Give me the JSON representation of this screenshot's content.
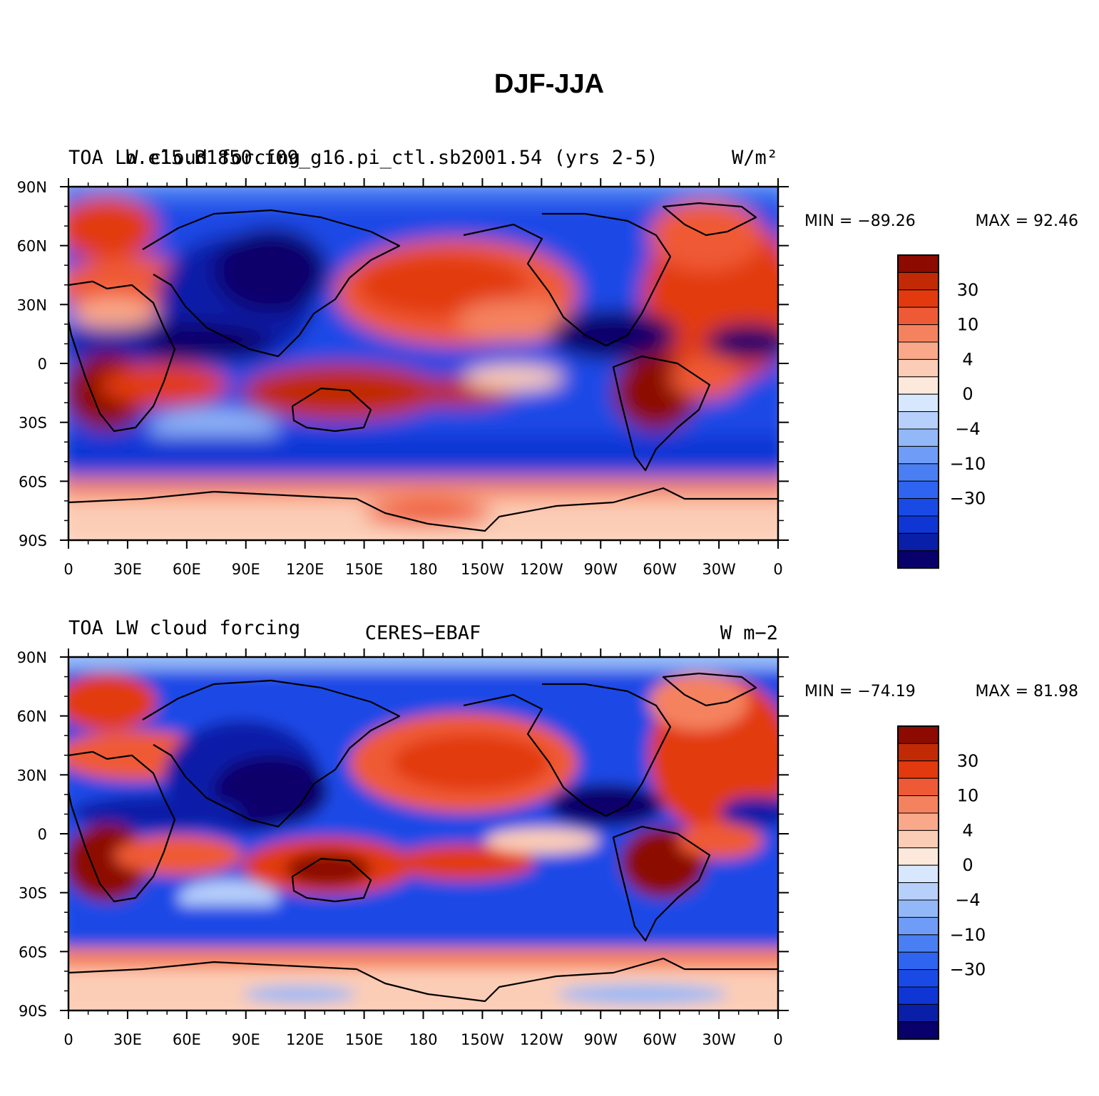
{
  "chart_data": {
    "type": "heatmap",
    "title": "DJF-JJA",
    "x_ticks": [
      "0",
      "30E",
      "60E",
      "90E",
      "120E",
      "150E",
      "180",
      "150W",
      "120W",
      "90W",
      "60W",
      "30W",
      "0"
    ],
    "y_ticks": [
      "90N",
      "60N",
      "30N",
      "0",
      "30S",
      "60S",
      "90S"
    ],
    "xlim": [
      0,
      360
    ],
    "ylim": [
      -90,
      90
    ],
    "levels": [
      -45,
      -35,
      -30,
      -25,
      -20,
      -15,
      -10,
      -8,
      -6,
      -4,
      -2,
      0,
      2,
      4,
      6,
      8,
      10,
      15,
      20,
      25,
      30,
      35,
      45
    ],
    "colorbar_labels": [
      "30",
      "10",
      "4",
      "0",
      "−4",
      "−10",
      "−30"
    ],
    "colorbar_colors": [
      "#08006b",
      "#0a1fa8",
      "#0f36d4",
      "#1a4ae6",
      "#2f64f0",
      "#4a7ff3",
      "#6f9cf6",
      "#93b8f8",
      "#b7d0fb",
      "#d7e7fd",
      "#fde9dc",
      "#fccdb6",
      "#f9a98a",
      "#f5825f",
      "#ef5a36",
      "#e23a0e",
      "#c12a04",
      "#8c0a00"
    ],
    "panels": [
      {
        "left_title": "TOA LW cloud forcing",
        "center_title": "b.e15.B1850.f09_g16.pi_ctl.sb2001.54 (yrs 2-5)",
        "units": "W/m²",
        "min_label": "MIN = −89.26",
        "max_label": "MAX =   92.46",
        "min": -89.26,
        "max": 92.46
      },
      {
        "left_title": "TOA LW cloud forcing",
        "center_title": "CERES−EBAF",
        "units": "W m−2",
        "min_label": "MIN = −74.19",
        "max_label": "MAX =   81.98",
        "min": -74.19,
        "max": 81.98
      }
    ]
  }
}
